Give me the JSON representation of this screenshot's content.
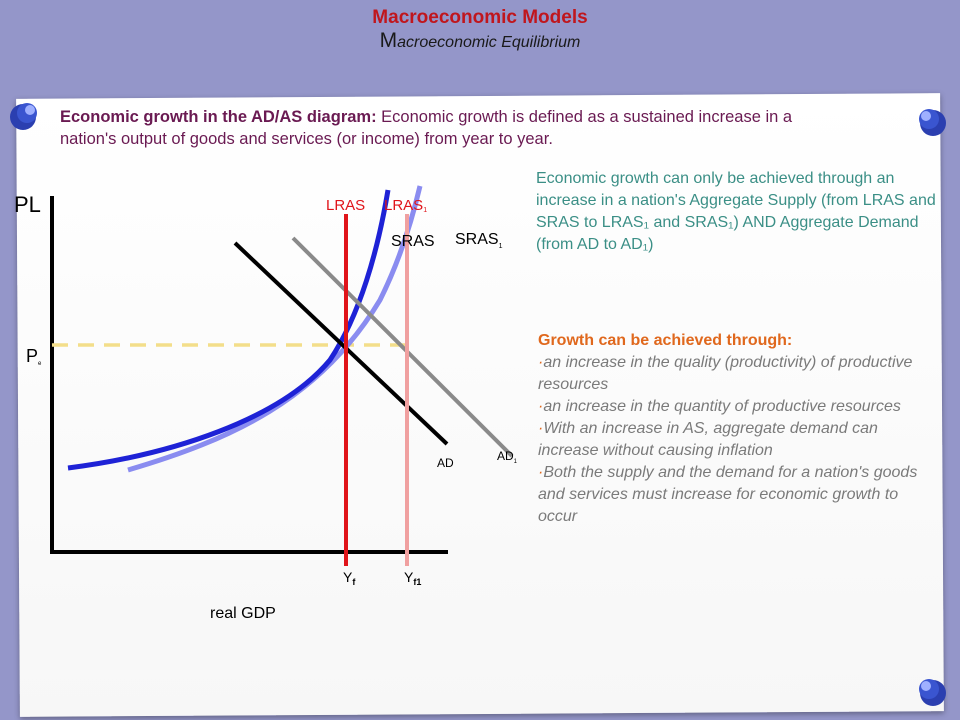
{
  "header": {
    "title": "Macroeconomic Models",
    "subtitle_initial": "M",
    "subtitle_rest": "acroeconomic Equilibrium"
  },
  "intro": {
    "bold": "Economic growth in the AD/AS diagram:",
    "text": " Economic growth is defined as a sustained increase in a nation's output of goods and services (or income) from year to year."
  },
  "explanation": "Economic growth can only be achieved through an increase in a nation's Aggregate Supply (from LRAS and SRAS to LRAS₁ and SRAS₁) AND Aggregate Demand (from AD to AD₁)",
  "growth": {
    "heading": "Growth can be achieved through:",
    "bullets": [
      "an increase in the quality (productivity) of productive resources",
      "an increase in the quantity of productive resources",
      "With an increase in AS, aggregate demand can increase without causing inflation",
      "Both the supply and the demand for a nation's goods and services must increase for economic growth to occur"
    ]
  },
  "diagram": {
    "y_axis_label": "PL",
    "x_axis_label": "real GDP",
    "lras": "LRAS",
    "lras1": "LRAS",
    "lras1_sub": "1",
    "sras": "SRAS",
    "sras1": "SRAS",
    "sras1_sub": "1",
    "ad": "AD",
    "ad1": "AD",
    "ad1_sub": "1",
    "pe": "P",
    "pe_sub": "e",
    "yf": "Y",
    "yf_sub": "f",
    "yf1": "Y",
    "yf1_sub": "f1"
  },
  "colors": {
    "background": "#9496c9",
    "title": "#c0161d",
    "lras": "#e0141a",
    "lras1": "#f0a0a0",
    "sras": "#1e22d6",
    "sras1": "#8a8cf0",
    "ad": "#000000",
    "ad1": "#8a8a8a",
    "price_line": "#f3de8a",
    "pin": "#2b3fb0"
  },
  "icons": [
    "push-pin-icon"
  ]
}
